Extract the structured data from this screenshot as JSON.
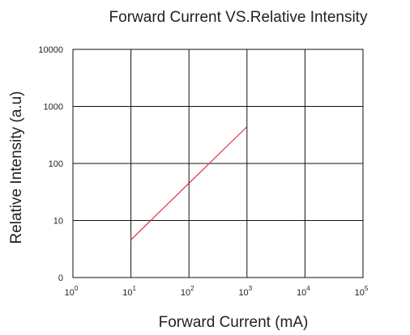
{
  "chart_data": {
    "type": "line",
    "title": "Forward Current VS.Relative Intensity",
    "xlabel": "Forward Current (mA)",
    "ylabel": "Relative Intensity (a.u)",
    "x_scale": "log",
    "y_scale": "log",
    "xlim": [
      1,
      100000
    ],
    "x_ticks": [
      {
        "base": "10",
        "exp": "0"
      },
      {
        "base": "10",
        "exp": "1"
      },
      {
        "base": "10",
        "exp": "2"
      },
      {
        "base": "10",
        "exp": "3"
      },
      {
        "base": "10",
        "exp": "4"
      },
      {
        "base": "10",
        "exp": "5"
      }
    ],
    "y_ticks": [
      "0",
      "10",
      "100",
      "1000",
      "10000"
    ],
    "grid": true,
    "series": [
      {
        "color": "#e8202a",
        "points": [
          {
            "x": 10,
            "y": 4.6
          },
          {
            "x": 1000,
            "y": 440
          }
        ]
      }
    ]
  }
}
